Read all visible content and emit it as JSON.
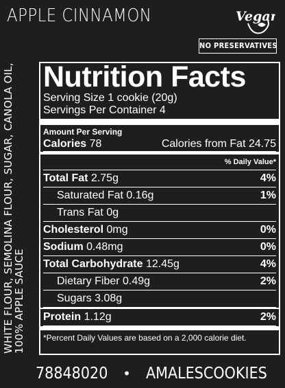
{
  "product_name": "APPLE CINNAMON",
  "badges": {
    "vegan": "Vegan",
    "no_preservatives": "NO PRESERVATIVES"
  },
  "ingredients": "WHITE FLOUR, SEMOLINA FLOUR, SUGAR, CANOLA OIL, 100% APPLE SAUCE",
  "nutrition": {
    "title": "Nutrition Facts",
    "serving_size": "Serving Size 1 cookie (20g)",
    "servings_per_container": "Servings Per Container 4",
    "amount_per_serving": "Amount Per Serving",
    "calories_label": "Calories",
    "calories_value": "78",
    "calories_from_fat": "Calories from Fat 24.75",
    "daily_value_header": "% Daily Value*",
    "rows": [
      {
        "label": "Total Fat",
        "amount": "2.75g",
        "dv": "4%"
      },
      {
        "label": "Saturated Fat",
        "amount": "0.16g",
        "dv": "1%"
      },
      {
        "label": "Trans Fat",
        "amount": "0g",
        "dv": ""
      },
      {
        "label": "Cholesterol",
        "amount": "0mg",
        "dv": "0%"
      },
      {
        "label": "Sodium",
        "amount": "0.48mg",
        "dv": "0%"
      },
      {
        "label": "Total Carbohydrate",
        "amount": "12.45g",
        "dv": "4%"
      },
      {
        "label": "Dietary Fiber",
        "amount": "0.49g",
        "dv": "2%"
      },
      {
        "label": "Sugars",
        "amount": "3.08g",
        "dv": ""
      },
      {
        "label": "Protein",
        "amount": "1.12g",
        "dv": "2%"
      }
    ],
    "footnote": "*Percent Daily Values are based on a 2,000 calorie diet."
  },
  "contact": {
    "phone": "78848020",
    "bullet": "•",
    "social_handle": "AMALESCOOKIES"
  },
  "colors": {
    "background": "#1f1d1e",
    "text": "#ffffff"
  },
  "icons": [
    "phone-icon",
    "facebook-icon",
    "instagram-icon"
  ]
}
